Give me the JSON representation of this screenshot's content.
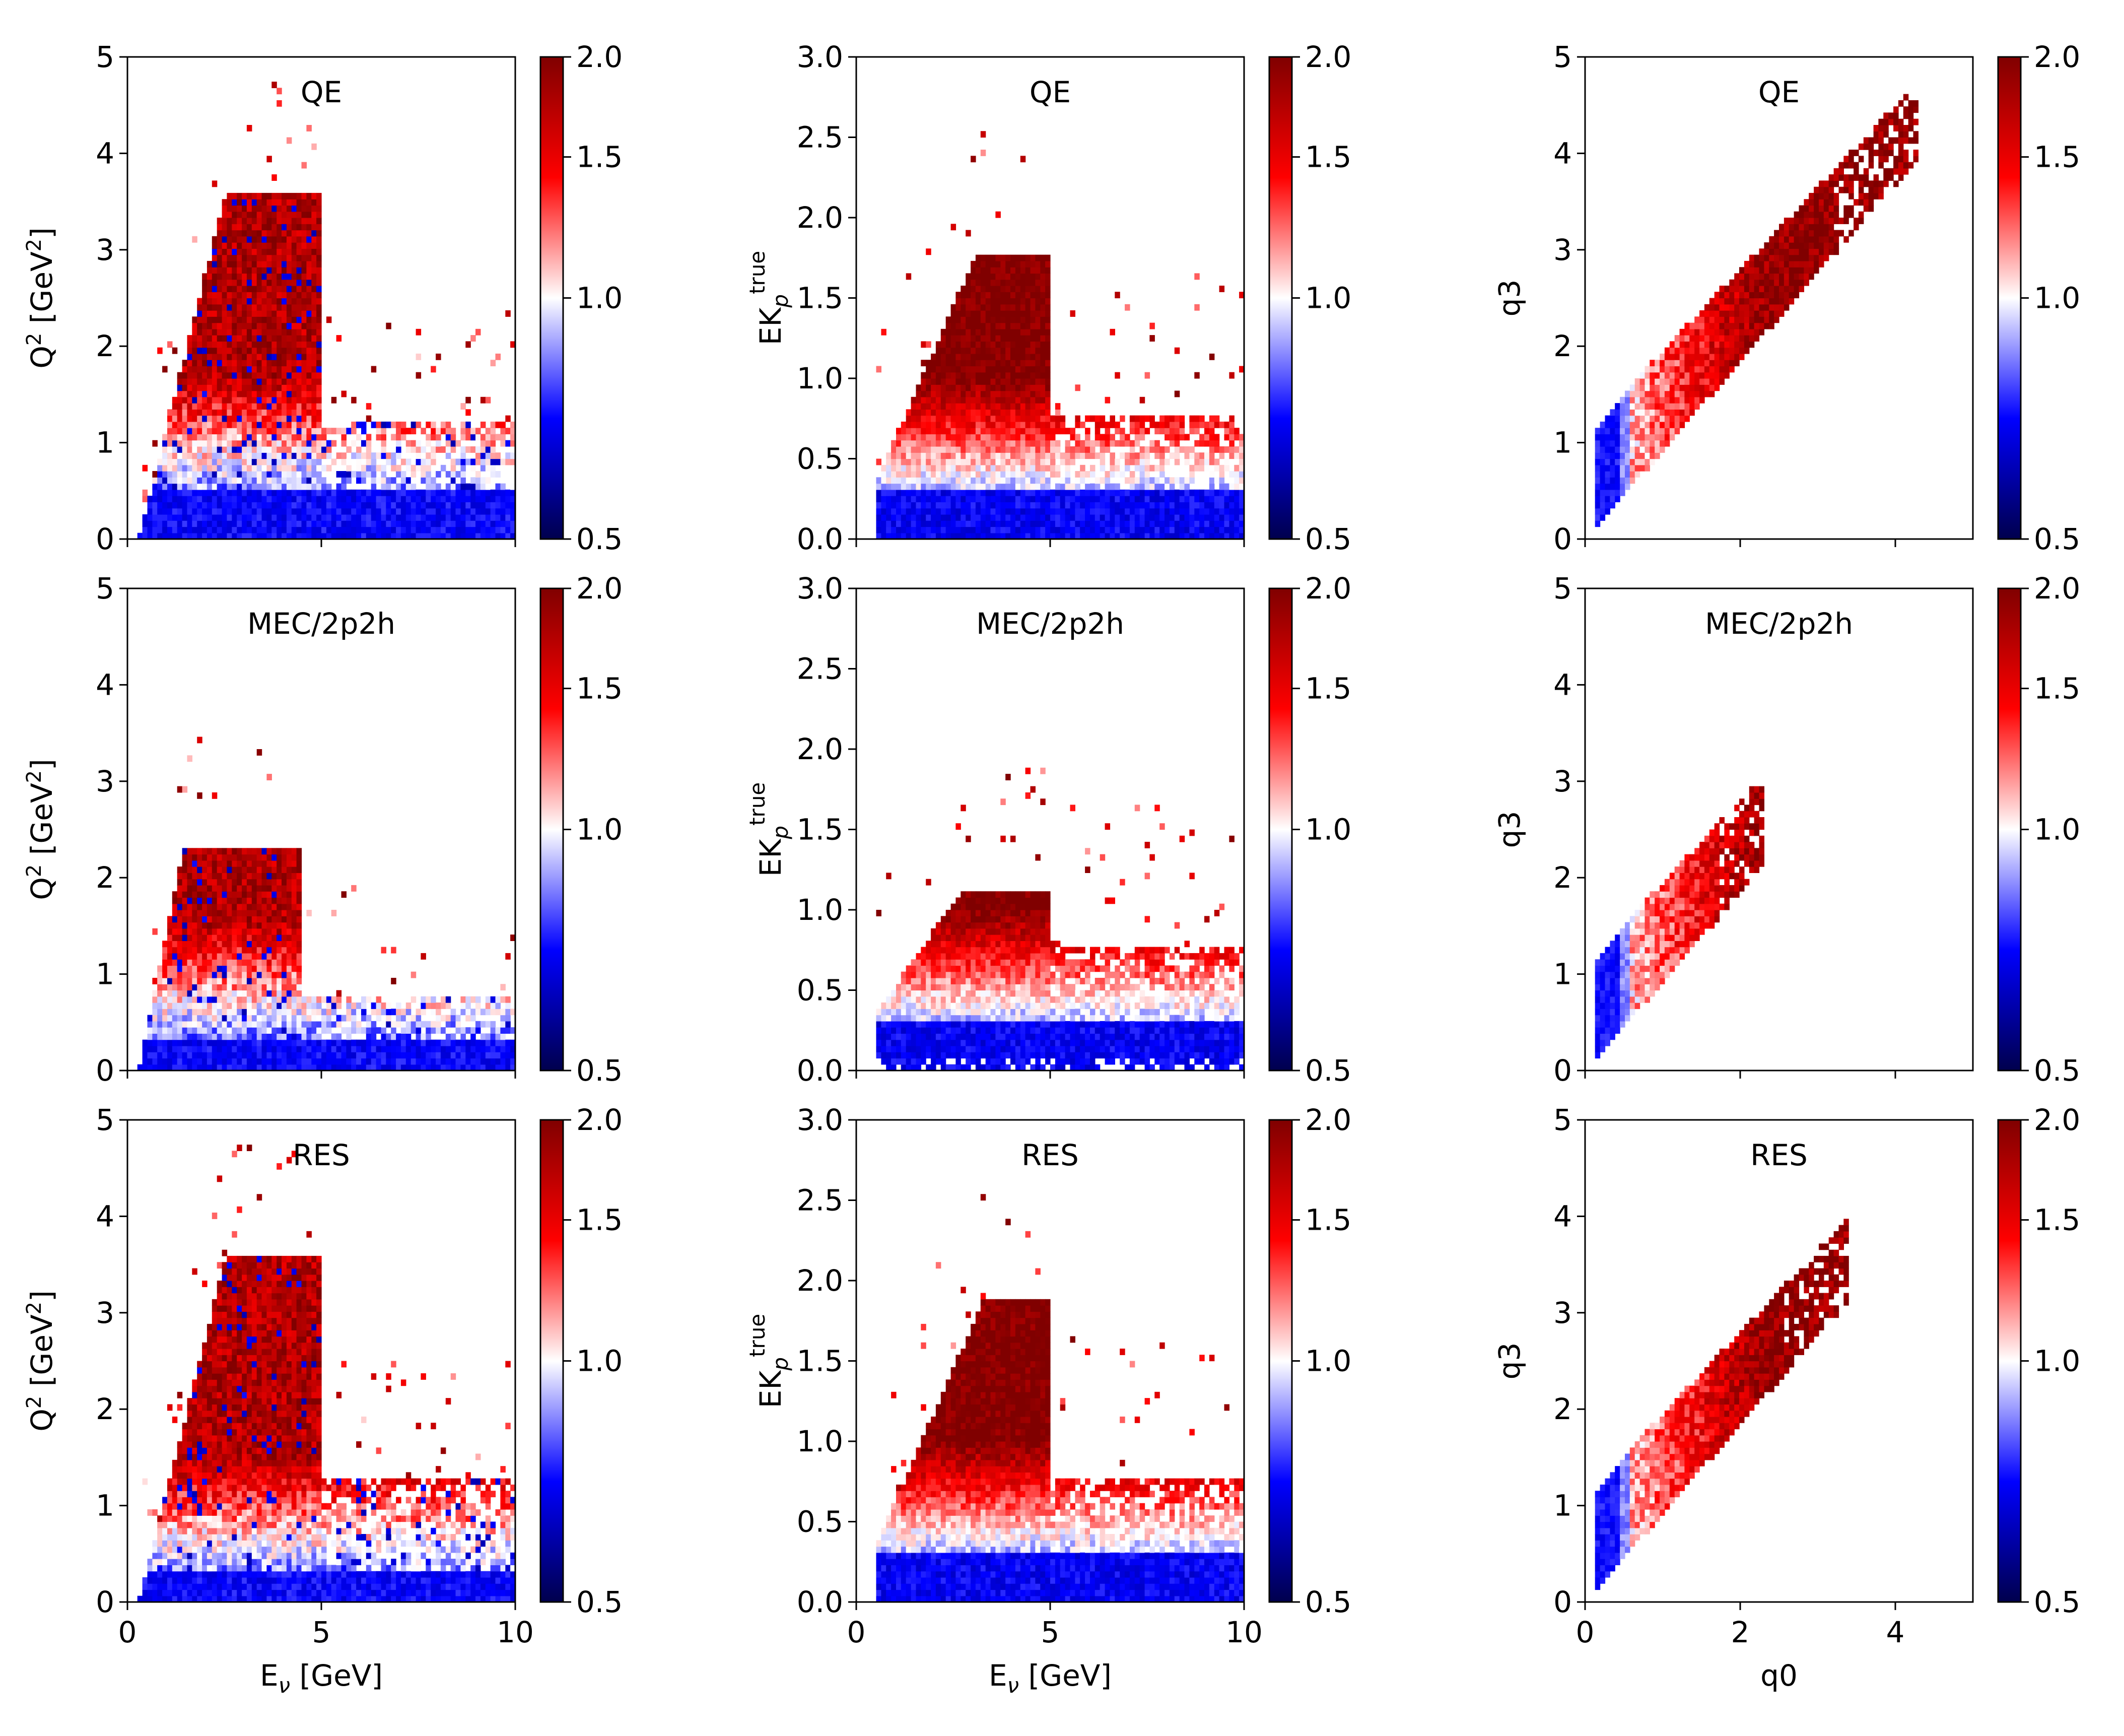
{
  "figure": {
    "colorbar": {
      "range": [
        0.5,
        2.0
      ],
      "center": 1.0,
      "ticks": [
        "2.0",
        "1.5",
        "1.0",
        "0.5"
      ],
      "tick_values": [
        2.0,
        1.5,
        1.0,
        0.5
      ],
      "colormap": "seismic",
      "colors": {
        "low": "#000050",
        "mid_low": "#0000ff",
        "center": "#ffffff",
        "mid_high": "#ff0000",
        "high": "#800000"
      }
    },
    "row_titles": [
      "QE",
      "MEC/2p2h",
      "RES"
    ]
  },
  "chart_data": [
    {
      "id": "a1",
      "type": "heatmap",
      "title": "QE",
      "ylabel": "Q2",
      "ylabel_sup": "2",
      "ylabel_tail": " [GeV",
      "ylabel_sup2": "2",
      "ylabel_end": "]",
      "xlabel": "",
      "x_range": [
        0,
        10
      ],
      "y_range": [
        0,
        5
      ],
      "x_ticks": [
        0,
        5,
        10
      ],
      "x_tick_labels": [
        "",
        "",
        ""
      ],
      "y_ticks": [
        0,
        1,
        2,
        3,
        4,
        5
      ],
      "y_tick_labels": [
        "0",
        "1",
        "2",
        "3",
        "4",
        "5"
      ],
      "kind": "enu_q2",
      "density_peak_x": 2.8,
      "edge_start": 0.3
    },
    {
      "id": "a2",
      "type": "heatmap",
      "title": "QE",
      "ylabel": "EK",
      "ylabel_sub": "p",
      "ylabel_sup": "true",
      "xlabel": "",
      "x_range": [
        0,
        10
      ],
      "y_range": [
        0,
        3
      ],
      "x_ticks": [
        0,
        5,
        10
      ],
      "x_tick_labels": [
        "",
        "",
        ""
      ],
      "y_ticks": [
        0,
        0.5,
        1,
        1.5,
        2,
        2.5,
        3
      ],
      "y_tick_labels": [
        "0.0",
        "0.5",
        "1.0",
        "1.5",
        "2.0",
        "2.5",
        "3.0"
      ],
      "kind": "enu_ek",
      "ymax_curve": 1.8,
      "edge_start": 0.5
    },
    {
      "id": "a3",
      "type": "heatmap",
      "title": "QE",
      "ylabel": "q3",
      "xlabel": "",
      "x_range": [
        0,
        5
      ],
      "y_range": [
        0,
        5
      ],
      "x_ticks": [
        0,
        2,
        4
      ],
      "x_tick_labels": [
        "",
        "",
        ""
      ],
      "y_ticks": [
        0,
        1,
        2,
        3,
        4,
        5
      ],
      "y_tick_labels": [
        "0",
        "1",
        "2",
        "3",
        "4",
        "5"
      ],
      "kind": "q0_q3",
      "band_max": 4.3
    },
    {
      "id": "b1",
      "type": "heatmap",
      "title": "MEC/2p2h",
      "ylabel": "Q2",
      "ylabel_sup": "2",
      "ylabel_tail": " [GeV",
      "ylabel_sup2": "2",
      "ylabel_end": "]",
      "xlabel": "",
      "x_range": [
        0,
        10
      ],
      "y_range": [
        0,
        5
      ],
      "x_ticks": [
        0,
        5,
        10
      ],
      "x_tick_labels": [
        "",
        "",
        ""
      ],
      "y_ticks": [
        0,
        1,
        2,
        3,
        4,
        5
      ],
      "y_tick_labels": [
        "0",
        "1",
        "2",
        "3",
        "4",
        "5"
      ],
      "kind": "enu_q2_mec",
      "edge_start": 0.3
    },
    {
      "id": "b2",
      "type": "heatmap",
      "title": "MEC/2p2h",
      "ylabel": "EK",
      "ylabel_sub": "p",
      "ylabel_sup": "true",
      "xlabel": "",
      "x_range": [
        0,
        10
      ],
      "y_range": [
        0,
        3
      ],
      "x_ticks": [
        0,
        5,
        10
      ],
      "x_tick_labels": [
        "",
        "",
        ""
      ],
      "y_ticks": [
        0,
        0.5,
        1,
        1.5,
        2,
        2.5,
        3
      ],
      "y_tick_labels": [
        "0.0",
        "0.5",
        "1.0",
        "1.5",
        "2.0",
        "2.5",
        "3.0"
      ],
      "kind": "enu_ek_mec",
      "edge_start": 0.5
    },
    {
      "id": "b3",
      "type": "heatmap",
      "title": "MEC/2p2h",
      "ylabel": "q3",
      "xlabel": "",
      "x_range": [
        0,
        5
      ],
      "y_range": [
        0,
        5
      ],
      "x_ticks": [
        0,
        2,
        4
      ],
      "x_tick_labels": [
        "",
        "",
        ""
      ],
      "y_ticks": [
        0,
        1,
        2,
        3,
        4,
        5
      ],
      "y_tick_labels": [
        "0",
        "1",
        "2",
        "3",
        "4",
        "5"
      ],
      "kind": "q0_q3",
      "band_max": 2.3
    },
    {
      "id": "c1",
      "type": "heatmap",
      "title": "RES",
      "ylabel": "Q2",
      "ylabel_sup": "2",
      "ylabel_tail": " [GeV",
      "ylabel_sup2": "2",
      "ylabel_end": "]",
      "xlabel": "E",
      "xlabel_sub": "ν",
      "xlabel_tail": " [GeV]",
      "x_range": [
        0,
        10
      ],
      "y_range": [
        0,
        5
      ],
      "x_ticks": [
        0,
        5,
        10
      ],
      "x_tick_labels": [
        "0",
        "5",
        "10"
      ],
      "y_ticks": [
        0,
        1,
        2,
        3,
        4,
        5
      ],
      "y_tick_labels": [
        "0",
        "1",
        "2",
        "3",
        "4",
        "5"
      ],
      "kind": "enu_q2_res",
      "edge_start": 0.3
    },
    {
      "id": "c2",
      "type": "heatmap",
      "title": "RES",
      "ylabel": "EK",
      "ylabel_sub": "p",
      "ylabel_sup": "true",
      "xlabel": "E",
      "xlabel_sub": "ν",
      "xlabel_tail": " [GeV]",
      "x_range": [
        0,
        10
      ],
      "y_range": [
        0,
        3
      ],
      "x_ticks": [
        0,
        5,
        10
      ],
      "x_tick_labels": [
        "0",
        "5",
        "10"
      ],
      "y_ticks": [
        0,
        0.5,
        1,
        1.5,
        2,
        2.5,
        3
      ],
      "y_tick_labels": [
        "0.0",
        "0.5",
        "1.0",
        "1.5",
        "2.0",
        "2.5",
        "3.0"
      ],
      "kind": "enu_ek_res",
      "edge_start": 0.5
    },
    {
      "id": "c3",
      "type": "heatmap",
      "title": "RES",
      "ylabel": "q3",
      "xlabel": "q0",
      "x_range": [
        0,
        5
      ],
      "y_range": [
        0,
        5
      ],
      "x_ticks": [
        0,
        2,
        4
      ],
      "x_tick_labels": [
        "0",
        "2",
        "4"
      ],
      "y_ticks": [
        0,
        1,
        2,
        3,
        4,
        5
      ],
      "y_tick_labels": [
        "0",
        "1",
        "2",
        "3",
        "4",
        "5"
      ],
      "kind": "q0_q3_res",
      "band_max": 3.4
    }
  ]
}
